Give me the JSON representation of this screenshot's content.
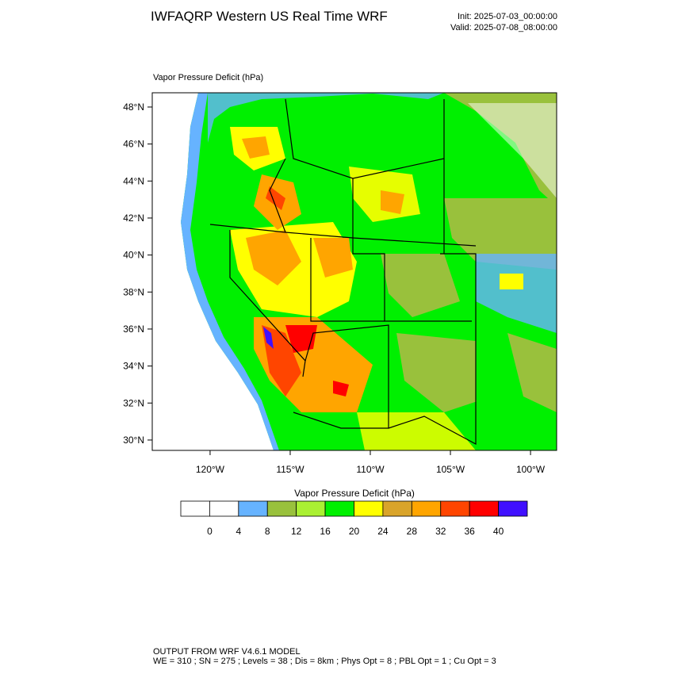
{
  "header": {
    "title": "IWFAQRP Western US Real Time WRF",
    "init": "Init: 2025-07-03_00:00:00",
    "valid": "Valid: 2025-07-08_08:00:00"
  },
  "map": {
    "field_label": "Vapor Pressure Deficit   (hPa)",
    "lonlim": [
      -123.61,
      -98.37
    ],
    "latlim": [
      29.44,
      48.77
    ],
    "lon_ticks": [
      {
        "value": -120,
        "label": "120°W"
      },
      {
        "value": -115,
        "label": "115°W"
      },
      {
        "value": -110,
        "label": "110°W"
      },
      {
        "value": -105,
        "label": "105°W"
      },
      {
        "value": -100,
        "label": "100°W"
      }
    ],
    "lat_ticks": [
      {
        "value": 30,
        "label": "30°N"
      },
      {
        "value": 32,
        "label": "32°N"
      },
      {
        "value": 34,
        "label": "34°N"
      },
      {
        "value": 36,
        "label": "36°N"
      },
      {
        "value": 38,
        "label": "38°N"
      },
      {
        "value": 40,
        "label": "40°N"
      },
      {
        "value": 42,
        "label": "42°N"
      },
      {
        "value": 44,
        "label": "44°N"
      },
      {
        "value": 46,
        "label": "46°N"
      },
      {
        "value": 48,
        "label": "48°N"
      }
    ]
  },
  "colorbar": {
    "title": "Vapor Pressure Deficit  (hPa)",
    "colors": [
      "#ffffff",
      "#ffffff",
      "#66b3ff",
      "#99c13c",
      "#aaf032",
      "#00f000",
      "#ffff00",
      "#d9a42a",
      "#ffa500",
      "#ff4500",
      "#ff0000",
      "#4010ff"
    ],
    "levels": [
      0,
      4,
      8,
      12,
      16,
      20,
      24,
      28,
      32,
      36,
      40
    ]
  },
  "footer": {
    "line1": "OUTPUT FROM WRF V4.6.1 MODEL",
    "line2": "WE = 310 ; SN = 275 ; Levels = 38 ; Dis = 8km ; Phys Opt = 8 ; PBL Opt = 1 ; Cu Opt = 3"
  }
}
